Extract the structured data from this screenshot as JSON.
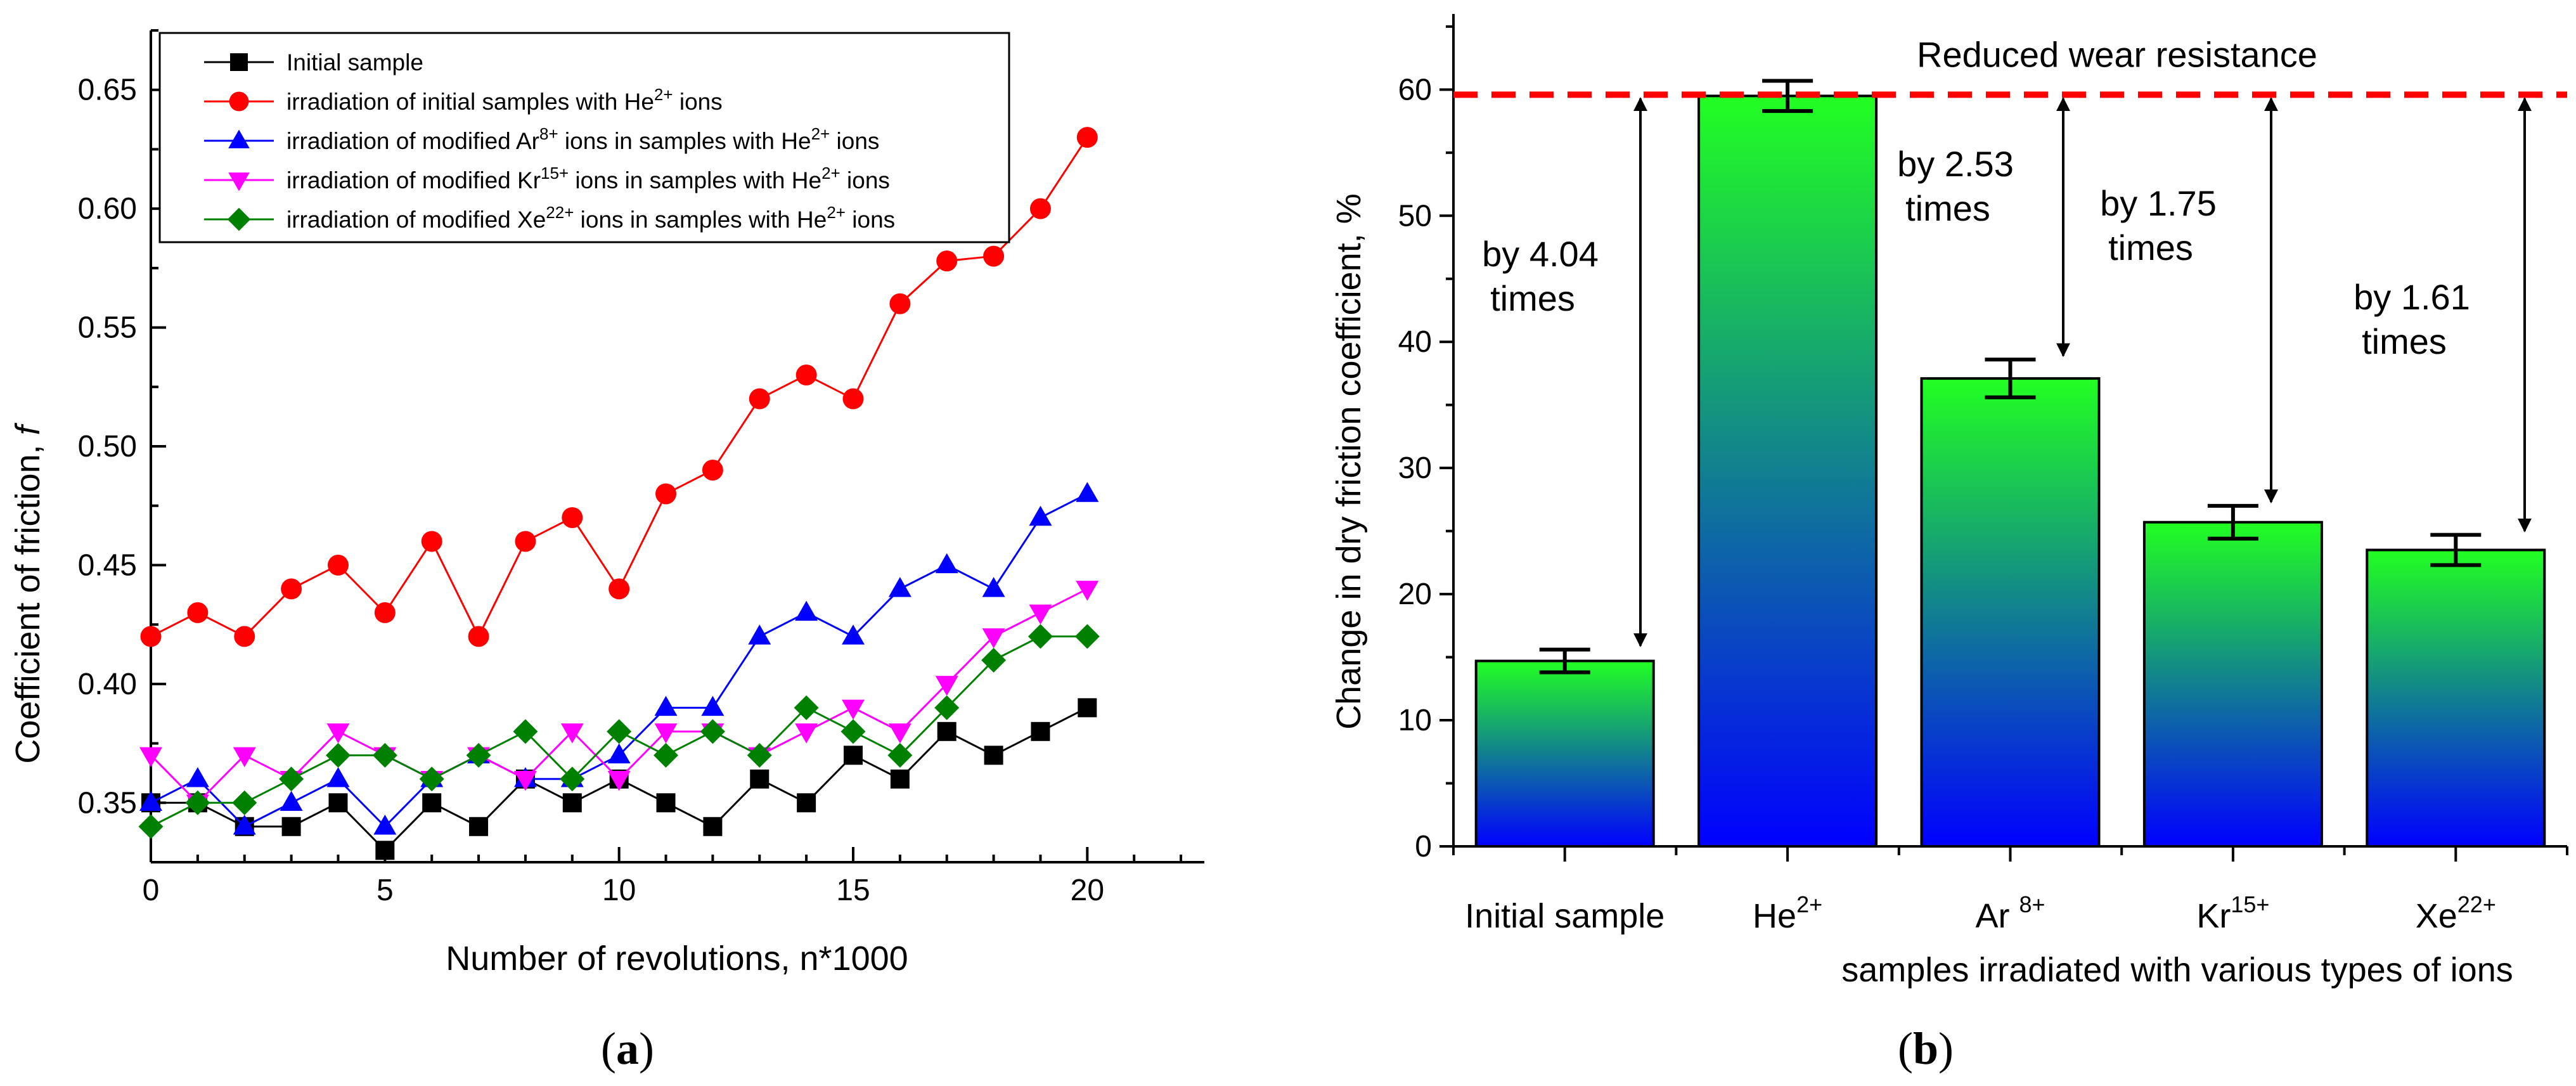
{
  "chart_data": [
    {
      "type": "line",
      "panel_label": "a",
      "xlabel": "Number of revolutions, n*1000",
      "ylabel": "Coefficient of friction, ",
      "ylabel_symbol": "f",
      "xlim": [
        0,
        22.5
      ],
      "ylim": [
        0.325,
        0.675
      ],
      "xticks": [
        0,
        5,
        10,
        15,
        20
      ],
      "yticks": [
        0.35,
        0.4,
        0.45,
        0.5,
        0.55,
        0.6,
        0.65
      ],
      "ytick_labels": [
        "0.35",
        "0.40",
        "0.45",
        "0.50",
        "0.55",
        "0.60",
        "0.65"
      ],
      "x": [
        0,
        1,
        2,
        3,
        4,
        5,
        6,
        7,
        8,
        9,
        10,
        11,
        12,
        13,
        14,
        15,
        16,
        17,
        18,
        19,
        20
      ],
      "series": [
        {
          "name": "Initial sample",
          "name_sup": "",
          "name_tail": "",
          "color": "#000000",
          "marker": "square",
          "values": [
            0.35,
            0.35,
            0.34,
            0.34,
            0.35,
            0.33,
            0.35,
            0.34,
            0.36,
            0.35,
            0.36,
            0.35,
            0.34,
            0.36,
            0.35,
            0.37,
            0.36,
            0.38,
            0.37,
            0.38,
            0.39
          ]
        },
        {
          "name": "irradiation of initial samples with He",
          "name_sup": "2+",
          "name_tail": " ions",
          "color": "#ff0000",
          "marker": "circle",
          "values": [
            0.42,
            0.43,
            0.42,
            0.44,
            0.45,
            0.43,
            0.46,
            0.42,
            0.46,
            0.47,
            0.44,
            0.48,
            0.49,
            0.52,
            0.53,
            0.52,
            0.56,
            0.578,
            0.58,
            0.6,
            0.63
          ]
        },
        {
          "name": "irradiation of modified Ar",
          "name_sup": "8+",
          "name_tail": " ions in samples with He",
          "name_sup2": "2+",
          "name_tail2": " ions",
          "color": "#0000ff",
          "marker": "triangle-up",
          "values": [
            0.35,
            0.36,
            0.34,
            0.35,
            0.36,
            0.34,
            0.36,
            0.37,
            0.36,
            0.36,
            0.37,
            0.39,
            0.39,
            0.42,
            0.43,
            0.42,
            0.44,
            0.45,
            0.44,
            0.47,
            0.48
          ]
        },
        {
          "name": "irradiation of modified Kr",
          "name_sup": "15+",
          "name_tail": " ions in samples with He",
          "name_sup2": "2+",
          "name_tail2": " ions",
          "color": "#ff00ff",
          "marker": "triangle-down",
          "values": [
            0.37,
            0.35,
            0.37,
            0.36,
            0.38,
            0.37,
            0.36,
            0.37,
            0.36,
            0.38,
            0.36,
            0.38,
            0.38,
            0.37,
            0.38,
            0.39,
            0.38,
            0.4,
            0.42,
            0.43,
            0.44
          ]
        },
        {
          "name": "irradiation of modified Xe",
          "name_sup": "22+",
          "name_tail": " ions in samples with He",
          "name_sup2": "2+",
          "name_tail2": " ions",
          "color": "#008000",
          "marker": "diamond",
          "values": [
            0.34,
            0.35,
            0.35,
            0.36,
            0.37,
            0.37,
            0.36,
            0.37,
            0.38,
            0.36,
            0.38,
            0.37,
            0.38,
            0.37,
            0.39,
            0.38,
            0.37,
            0.39,
            0.41,
            0.42,
            0.42
          ]
        }
      ]
    },
    {
      "type": "bar",
      "panel_label": "b",
      "xlabel": "samples irradiated with various types of ions",
      "ylabel": "Change in dry friction coefficient, %",
      "ylim": [
        0,
        66
      ],
      "yticks": [
        0,
        10,
        20,
        30,
        40,
        50,
        60
      ],
      "categories": [
        {
          "base": "Initial sample",
          "sup": ""
        },
        {
          "base": "He",
          "sup": "2+"
        },
        {
          "base": "Ar ",
          "sup": "8+"
        },
        {
          "base": "Kr",
          "sup": "15+"
        },
        {
          "base": "Xe",
          "sup": "22+"
        }
      ],
      "values": [
        14.7,
        59.5,
        37.1,
        25.7,
        23.5
      ],
      "errors": [
        0.9,
        1.2,
        1.5,
        1.3,
        1.2
      ],
      "reference_line": {
        "value": 59.6,
        "label": "Reduced wear resistance",
        "color": "#ff0000"
      },
      "gradient": {
        "top": "#22ff22",
        "bottom": "#0000ff"
      },
      "annotations": [
        {
          "line1": "by 4.04",
          "line2": "times",
          "bar_index": 0
        },
        {
          "line1": "by 2.53",
          "line2": "times",
          "bar_index": 2
        },
        {
          "line1": "by 1.75",
          "line2": "times",
          "bar_index": 3
        },
        {
          "line1": "by 1.61",
          "line2": "times",
          "bar_index": 4
        }
      ]
    }
  ]
}
